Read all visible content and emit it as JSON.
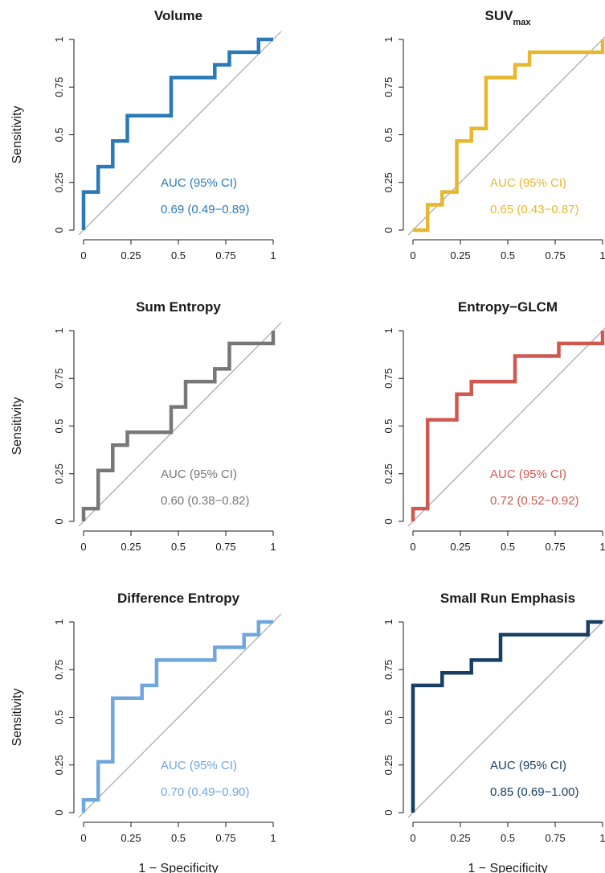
{
  "chart_data": [
    {
      "type": "line",
      "title": "Volume",
      "title_sub": "",
      "xlabel": "",
      "ylabel": "Sensitivity",
      "xlim": [
        0,
        1
      ],
      "ylim": [
        0,
        1
      ],
      "xticks": [
        "0",
        "0.25",
        "0.5",
        "0.75",
        "1"
      ],
      "yticks": [
        "0",
        "0.25",
        "0.5",
        "0.75",
        "1"
      ],
      "color": "#2a7ab9",
      "reference_line": "diagonal",
      "auc_label": "AUC (95% CI)",
      "auc_value": "0.69 (0.49−0.89)",
      "x": [
        0,
        0,
        0.077,
        0.077,
        0.154,
        0.154,
        0.231,
        0.231,
        0.462,
        0.462,
        0.692,
        0.692,
        0.769,
        0.769,
        0.923,
        0.923,
        1
      ],
      "y": [
        0,
        0.2,
        0.2,
        0.333,
        0.333,
        0.467,
        0.467,
        0.6,
        0.6,
        0.8,
        0.8,
        0.867,
        0.867,
        0.933,
        0.933,
        1,
        1
      ]
    },
    {
      "type": "line",
      "title": "SUV",
      "title_sub": "max",
      "xlabel": "",
      "ylabel": "",
      "xlim": [
        0,
        1
      ],
      "ylim": [
        0,
        1
      ],
      "xticks": [
        "0",
        "0.25",
        "0.5",
        "0.75",
        "1"
      ],
      "yticks": [
        "0",
        "0.25",
        "0.5",
        "0.75",
        "1"
      ],
      "color": "#e8b72e",
      "reference_line": "diagonal",
      "auc_label": "AUC (95% CI)",
      "auc_value": "0.65 (0.43−0.87)",
      "x": [
        0,
        0.077,
        0.077,
        0.154,
        0.154,
        0.231,
        0.231,
        0.308,
        0.308,
        0.385,
        0.385,
        0.538,
        0.538,
        0.615,
        0.615,
        1,
        1
      ],
      "y": [
        0,
        0,
        0.133,
        0.133,
        0.2,
        0.2,
        0.467,
        0.467,
        0.533,
        0.533,
        0.8,
        0.8,
        0.867,
        0.867,
        0.933,
        0.933,
        1
      ]
    },
    {
      "type": "line",
      "title": "Sum Entropy",
      "title_sub": "",
      "xlabel": "",
      "ylabel": "Sensitivity",
      "xlim": [
        0,
        1
      ],
      "ylim": [
        0,
        1
      ],
      "xticks": [
        "0",
        "0.25",
        "0.5",
        "0.75",
        "1"
      ],
      "yticks": [
        "0",
        "0.25",
        "0.5",
        "0.75",
        "1"
      ],
      "color": "#777777",
      "reference_line": "diagonal",
      "auc_label": "AUC (95% CI)",
      "auc_value": "0.60 (0.38−0.82)",
      "x": [
        0,
        0,
        0.077,
        0.077,
        0.154,
        0.154,
        0.231,
        0.231,
        0.462,
        0.462,
        0.538,
        0.538,
        0.692,
        0.692,
        0.769,
        0.769,
        1,
        1
      ],
      "y": [
        0,
        0.067,
        0.067,
        0.267,
        0.267,
        0.4,
        0.4,
        0.467,
        0.467,
        0.6,
        0.6,
        0.733,
        0.733,
        0.8,
        0.8,
        0.933,
        0.933,
        1
      ]
    },
    {
      "type": "line",
      "title": "Entropy−GLCM",
      "title_sub": "",
      "xlabel": "",
      "ylabel": "",
      "xlim": [
        0,
        1
      ],
      "ylim": [
        0,
        1
      ],
      "xticks": [
        "0",
        "0.25",
        "0.5",
        "0.75",
        "1"
      ],
      "yticks": [
        "0",
        "0.25",
        "0.5",
        "0.75",
        "1"
      ],
      "color": "#cf5951",
      "reference_line": "diagonal",
      "auc_label": "AUC (95% CI)",
      "auc_value": "0.72 (0.52−0.92)",
      "x": [
        0,
        0,
        0.077,
        0.077,
        0.231,
        0.231,
        0.308,
        0.308,
        0.538,
        0.538,
        0.769,
        0.769,
        1,
        1
      ],
      "y": [
        0,
        0.067,
        0.067,
        0.533,
        0.533,
        0.667,
        0.667,
        0.733,
        0.733,
        0.867,
        0.867,
        0.933,
        0.933,
        1
      ]
    },
    {
      "type": "line",
      "title": "Difference Entropy",
      "title_sub": "",
      "xlabel": "1 − Specificity",
      "ylabel": "Sensitivity",
      "xlim": [
        0,
        1
      ],
      "ylim": [
        0,
        1
      ],
      "xticks": [
        "0",
        "0.25",
        "0.5",
        "0.75",
        "1"
      ],
      "yticks": [
        "0",
        "0.25",
        "0.5",
        "0.75",
        "1"
      ],
      "color": "#6fa6dc",
      "reference_line": "diagonal",
      "auc_label": "AUC (95% CI)",
      "auc_value": "0.70 (0.49−0.90)",
      "x": [
        0,
        0,
        0.077,
        0.077,
        0.154,
        0.154,
        0.308,
        0.308,
        0.385,
        0.385,
        0.692,
        0.692,
        0.846,
        0.846,
        0.923,
        0.923,
        1
      ],
      "y": [
        0,
        0.067,
        0.067,
        0.267,
        0.267,
        0.6,
        0.6,
        0.667,
        0.667,
        0.8,
        0.8,
        0.867,
        0.867,
        0.933,
        0.933,
        1,
        1
      ]
    },
    {
      "type": "line",
      "title": "Small Run Emphasis",
      "title_sub": "",
      "xlabel": "1 − Specificity",
      "ylabel": "",
      "xlim": [
        0,
        1
      ],
      "ylim": [
        0,
        1
      ],
      "xticks": [
        "0",
        "0.25",
        "0.5",
        "0.75",
        "1"
      ],
      "yticks": [
        "0",
        "0.25",
        "0.5",
        "0.75",
        "1"
      ],
      "color": "#173f63",
      "reference_line": "diagonal",
      "auc_label": "AUC (95% CI)",
      "auc_value": "0.85 (0.69−1.00)",
      "x": [
        0,
        0,
        0.154,
        0.154,
        0.308,
        0.308,
        0.462,
        0.462,
        0.923,
        0.923,
        1
      ],
      "y": [
        0,
        0.667,
        0.667,
        0.733,
        0.733,
        0.8,
        0.8,
        0.933,
        0.933,
        1,
        1
      ]
    }
  ]
}
